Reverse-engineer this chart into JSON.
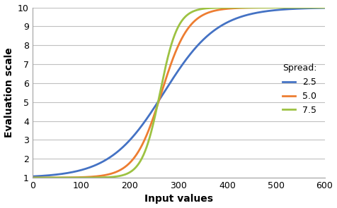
{
  "title": "",
  "xlabel": "Input values",
  "ylabel": "Evaluation scale",
  "xlim": [
    0,
    600
  ],
  "ylim": [
    1,
    10
  ],
  "xticks": [
    0,
    100,
    200,
    300,
    400,
    500,
    600
  ],
  "yticks": [
    1,
    2,
    3,
    4,
    5,
    6,
    7,
    8,
    9,
    10
  ],
  "series": [
    {
      "label": "2.5",
      "k": 0.018,
      "midpoint": 270,
      "color": "#4472C4"
    },
    {
      "label": "5.0",
      "k": 0.036,
      "midpoint": 265,
      "color": "#ED7D31"
    },
    {
      "label": "7.5",
      "k": 0.055,
      "midpoint": 262,
      "color": "#9DC242"
    }
  ],
  "legend_title": "Spread:",
  "background_color": "#ffffff",
  "grid_color": "#C0C0C0",
  "linewidth": 2.0
}
